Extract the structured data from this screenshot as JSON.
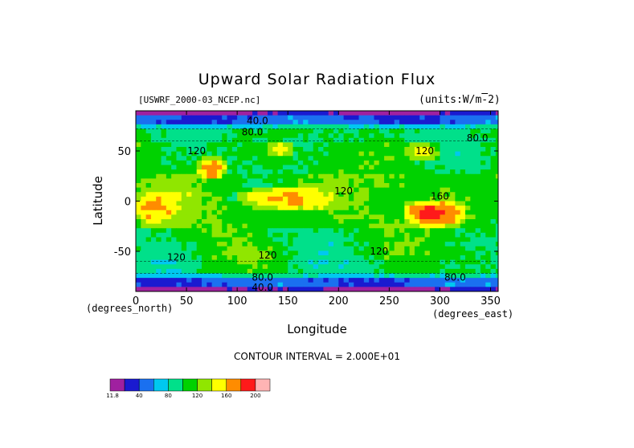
{
  "chart_data": {
    "type": "heatmap",
    "title": "Upward Solar Radiation Flux",
    "source_label": "[USWRF_2000-03_NCEP.nc]",
    "units_label": "(units:W/m^-2)",
    "xlabel": "Longitude",
    "ylabel": "Latitude",
    "x_unit_label": "(degrees_east)",
    "y_unit_label": "(degrees_north)",
    "xlim": [
      0,
      357.5
    ],
    "ylim": [
      -90,
      90
    ],
    "xticks": [
      "0",
      "50",
      "100",
      "150",
      "200",
      "250",
      "300",
      "350"
    ],
    "yticks": [
      "50",
      "0",
      "-50"
    ],
    "xtick_values": [
      0,
      50,
      100,
      150,
      200,
      250,
      300,
      350
    ],
    "ytick_values": [
      50,
      0,
      -50
    ],
    "contour_interval_text": "CONTOUR INTERVAL = 2.000E+01",
    "contour_labels": [
      {
        "text": "40.0",
        "lon": 120,
        "lat": 80
      },
      {
        "text": "80.0",
        "lon": 115,
        "lat": 69
      },
      {
        "text": "80.0",
        "lon": 337,
        "lat": 63
      },
      {
        "text": "120",
        "lon": 60,
        "lat": 50
      },
      {
        "text": "120",
        "lon": 285,
        "lat": 50
      },
      {
        "text": "120",
        "lon": 205,
        "lat": 10
      },
      {
        "text": "160",
        "lon": 300,
        "lat": 5
      },
      {
        "text": "120",
        "lon": 40,
        "lat": -56
      },
      {
        "text": "120",
        "lon": 130,
        "lat": -54
      },
      {
        "text": "120",
        "lon": 240,
        "lat": -50
      },
      {
        "text": "80.0",
        "lon": 125,
        "lat": -76
      },
      {
        "text": "80.0",
        "lon": 315,
        "lat": -76
      },
      {
        "text": "40.0",
        "lon": 125,
        "lat": -86
      }
    ],
    "regions": [
      {
        "lon": [
          265,
          325
        ],
        "lat": [
          -25,
          0
        ],
        "value": 190
      },
      {
        "lon": [
          60,
          90
        ],
        "lat": [
          22,
          45
        ],
        "value": 180
      },
      {
        "lon": [
          0,
          40
        ],
        "lat": [
          -25,
          10
        ],
        "value": 165
      },
      {
        "lon": [
          100,
          195
        ],
        "lat": [
          -10,
          15
        ],
        "value": 165
      },
      {
        "lon": [
          265,
          300
        ],
        "lat": [
          40,
          60
        ],
        "value": 160
      },
      {
        "lon": [
          130,
          155
        ],
        "lat": [
          45,
          60
        ],
        "value": 165
      }
    ],
    "colorbar": {
      "labels": [
        "11.8",
        "40",
        "80",
        "120",
        "160",
        "200"
      ],
      "colors": [
        "#a020a0",
        "#1a1ad0",
        "#1a70f0",
        "#00c8f0",
        "#00e08a",
        "#00d200",
        "#90e600",
        "#ffff00",
        "#ff8c00",
        "#ff1a1a",
        "#ffb4b4"
      ]
    }
  }
}
